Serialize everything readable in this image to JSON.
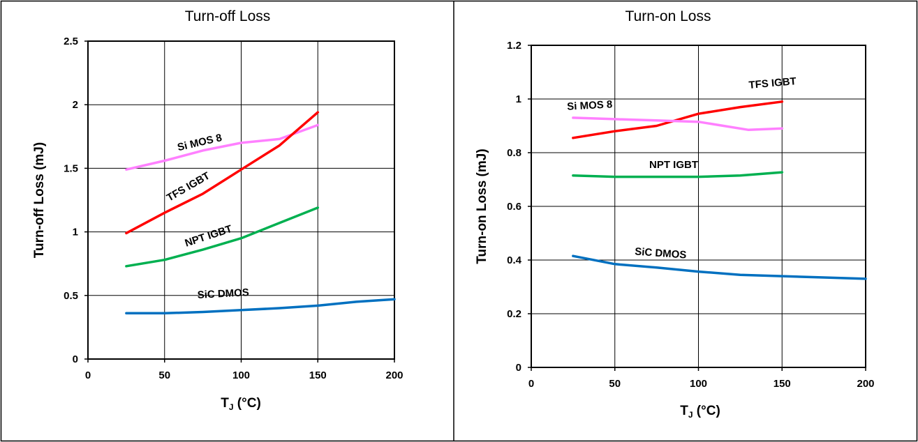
{
  "chart_data": [
    {
      "type": "line",
      "title": "Turn-off Loss",
      "ylabel": "Turn-off Loss (mJ)",
      "xlabel_main": "T",
      "xlabel_sub": "J",
      "xlabel_unit": " (°C)",
      "xlim": [
        0,
        200
      ],
      "ylim": [
        0,
        2.5
      ],
      "x_ticks": [
        0,
        50,
        100,
        150,
        200
      ],
      "y_ticks": [
        0,
        0.5,
        1,
        1.5,
        2,
        2.5
      ],
      "x_tick_labels": [
        "0",
        "50",
        "100",
        "150",
        "200"
      ],
      "y_tick_labels": [
        "0",
        "0.5",
        "1",
        "1.5",
        "2",
        "2.5"
      ],
      "grid": true,
      "series": [
        {
          "name": "Si MOS 8",
          "color": "#ff80ff",
          "x": [
            25,
            50,
            75,
            100,
            125,
            150
          ],
          "y": [
            1.49,
            1.56,
            1.64,
            1.7,
            1.73,
            1.84
          ]
        },
        {
          "name": "TFS IGBT",
          "color": "#ff0000",
          "x": [
            25,
            50,
            75,
            100,
            125,
            150
          ],
          "y": [
            0.99,
            1.15,
            1.3,
            1.49,
            1.68,
            1.94
          ]
        },
        {
          "name": "NPT IGBT",
          "color": "#00b050",
          "x": [
            25,
            50,
            75,
            100,
            125,
            150
          ],
          "y": [
            0.73,
            0.78,
            0.86,
            0.95,
            1.07,
            1.19
          ]
        },
        {
          "name": "SiC DMOS",
          "color": "#0070c0",
          "x": [
            25,
            50,
            75,
            100,
            125,
            150,
            175,
            200
          ],
          "y": [
            0.36,
            0.36,
            0.37,
            0.385,
            0.4,
            0.42,
            0.45,
            0.47
          ]
        }
      ]
    },
    {
      "type": "line",
      "title": "Turn-on Loss",
      "ylabel": "Turn-on Loss (mJ)",
      "xlabel_main": "T",
      "xlabel_sub": "J",
      "xlabel_unit": " (°C)",
      "xlim": [
        0,
        200
      ],
      "ylim": [
        0,
        1.2
      ],
      "x_ticks": [
        0,
        50,
        100,
        150,
        200
      ],
      "y_ticks": [
        0,
        0.2,
        0.4,
        0.6,
        0.8,
        1,
        1.2
      ],
      "x_tick_labels": [
        "0",
        "50",
        "100",
        "150",
        "200"
      ],
      "y_tick_labels": [
        "0",
        "0.2",
        "0.4",
        "0.6",
        "0.8",
        "1",
        "1.2"
      ],
      "grid": true,
      "series": [
        {
          "name": "TFS IGBT",
          "color": "#ff0000",
          "x": [
            25,
            50,
            75,
            100,
            125,
            150
          ],
          "y": [
            0.855,
            0.88,
            0.9,
            0.945,
            0.97,
            0.99
          ]
        },
        {
          "name": "Si MOS 8",
          "color": "#ff80ff",
          "x": [
            25,
            50,
            75,
            100,
            115,
            130,
            150
          ],
          "y": [
            0.93,
            0.925,
            0.92,
            0.915,
            0.9,
            0.885,
            0.89
          ]
        },
        {
          "name": "NPT IGBT",
          "color": "#00b050",
          "x": [
            25,
            50,
            75,
            100,
            125,
            150
          ],
          "y": [
            0.715,
            0.71,
            0.71,
            0.71,
            0.715,
            0.727
          ]
        },
        {
          "name": "SiC DMOS",
          "color": "#0070c0",
          "x": [
            25,
            50,
            75,
            100,
            125,
            150,
            175,
            200
          ],
          "y": [
            0.415,
            0.385,
            0.372,
            0.357,
            0.345,
            0.34,
            0.335,
            0.33
          ]
        }
      ]
    }
  ]
}
